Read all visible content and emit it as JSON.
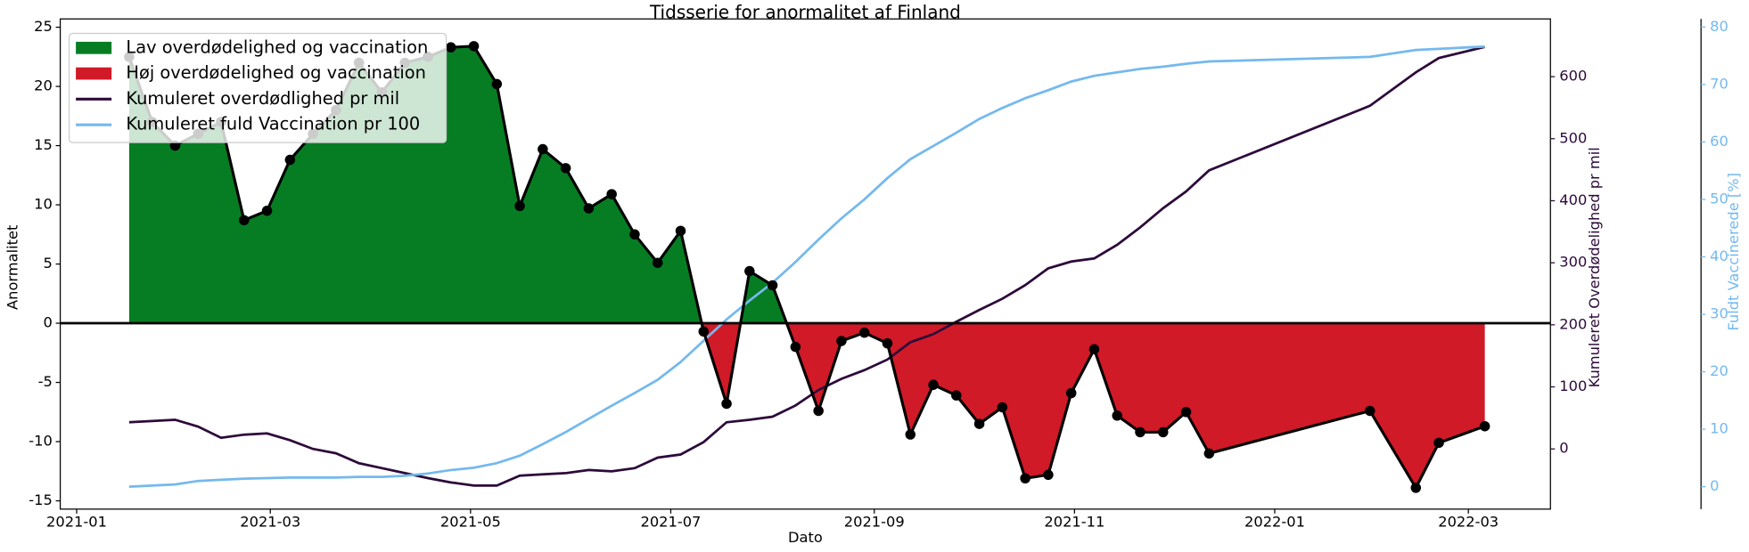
{
  "chart_data": {
    "type": "line",
    "title": "Tidsserie for anormalitet af Finland",
    "x_label": "Dato",
    "y_label": "Anormalitet",
    "y2_label": "Kumuleret Overdødelighed pr mil",
    "y3_label": "Fuldt Vaccinerede [%]",
    "x": [
      "2021-01-17",
      "2021-01-24",
      "2021-01-31",
      "2021-02-07",
      "2021-02-14",
      "2021-02-21",
      "2021-02-28",
      "2021-03-07",
      "2021-03-14",
      "2021-03-21",
      "2021-03-28",
      "2021-04-04",
      "2021-04-11",
      "2021-04-18",
      "2021-04-25",
      "2021-05-02",
      "2021-05-09",
      "2021-05-16",
      "2021-05-23",
      "2021-05-30",
      "2021-06-06",
      "2021-06-13",
      "2021-06-20",
      "2021-06-27",
      "2021-07-04",
      "2021-07-11",
      "2021-07-18",
      "2021-07-25",
      "2021-08-01",
      "2021-08-08",
      "2021-08-15",
      "2021-08-22",
      "2021-08-29",
      "2021-09-05",
      "2021-09-12",
      "2021-09-19",
      "2021-09-26",
      "2021-10-03",
      "2021-10-10",
      "2021-10-17",
      "2021-10-24",
      "2021-10-31",
      "2021-11-07",
      "2021-11-14",
      "2021-11-21",
      "2021-11-28",
      "2021-12-05",
      "2021-12-12",
      "2022-01-30",
      "2022-02-13",
      "2022-02-20",
      "2022-03-06"
    ],
    "values": [
      22.5,
      17,
      15,
      16,
      17,
      8.7,
      9.5,
      13.8,
      16,
      18,
      22,
      19.5,
      22,
      22.5,
      23.3,
      23.4,
      20.2,
      9.9,
      14.7,
      13.1,
      9.7,
      10.9,
      7.5,
      5.1,
      7.8,
      -0.7,
      -6.8,
      4.4,
      3.2,
      -2.0,
      -7.4,
      -1.5,
      -0.8,
      -1.7,
      -9.4,
      -5.2,
      -6.1,
      -8.5,
      -7.1,
      -13.1,
      -12.8,
      -5.9,
      -2.2,
      -7.8,
      -9.2,
      -9.2,
      -7.5,
      -11.0,
      -7.4,
      -13.9,
      -10.1,
      -8.7
    ],
    "line_color": "#000000",
    "series": [
      {
        "name": "Lav overdødelighed og vaccination",
        "color": "#077d23",
        "fill": "above"
      },
      {
        "name": "Høj overdødelighed og vaccination",
        "color": "#d01a28",
        "fill": "below"
      },
      {
        "name": "Kumuleret overdødlighed pr mil",
        "color": "#2d0a3a",
        "axis": "y2",
        "values": [
          43,
          45,
          47,
          36,
          18,
          23,
          25,
          14,
          0,
          -7,
          -23,
          -31,
          -39,
          -47,
          -54,
          -59,
          -59,
          -43,
          -41,
          -39,
          -34,
          -36,
          -31,
          -14,
          -9,
          11,
          43,
          47,
          52,
          70,
          95,
          113,
          127,
          144,
          172,
          185,
          205,
          224,
          242,
          264,
          291,
          302,
          307,
          329,
          357,
          388,
          415,
          449,
          553,
          607,
          630,
          648
        ]
      },
      {
        "name": "Kumuleret fuld Vaccination pr 100",
        "color": "#74b9ee",
        "axis": "y3",
        "values": [
          0,
          0.2,
          0.4,
          1.0,
          1.2,
          1.4,
          1.5,
          1.6,
          1.6,
          1.6,
          1.7,
          1.7,
          1.9,
          2.3,
          2.9,
          3.3,
          4.1,
          5.4,
          7.4,
          9.5,
          11.8,
          14.1,
          16.3,
          18.6,
          21.7,
          25.4,
          29.1,
          32.4,
          35.5,
          39.1,
          43.0,
          46.7,
          50.0,
          53.7,
          57.0,
          59.3,
          61.6,
          64.0,
          65.9,
          67.6,
          69.0,
          70.5,
          71.5,
          72.1,
          72.7,
          73.1,
          73.6,
          74.0,
          74.8,
          76.0,
          76.2,
          76.6
        ]
      }
    ],
    "xlim": [
      "2020-12-27",
      "2022-03-26"
    ],
    "xticks": [
      "2021-01",
      "2021-03",
      "2021-05",
      "2021-07",
      "2021-09",
      "2021-11",
      "2022-01",
      "2022-03"
    ],
    "ylim": [
      -15.7,
      25.7
    ],
    "yticks": [
      -15,
      -10,
      -5,
      0,
      5,
      10,
      15,
      20,
      25
    ],
    "y2lim": [
      -97,
      693
    ],
    "y2ticks": [
      0,
      100,
      200,
      300,
      400,
      500,
      600
    ],
    "y3lim": [
      -3.9,
      81.4
    ],
    "y3ticks": [
      0,
      10,
      20,
      30,
      40,
      50,
      60,
      70,
      80
    ],
    "legend": "upper left"
  }
}
